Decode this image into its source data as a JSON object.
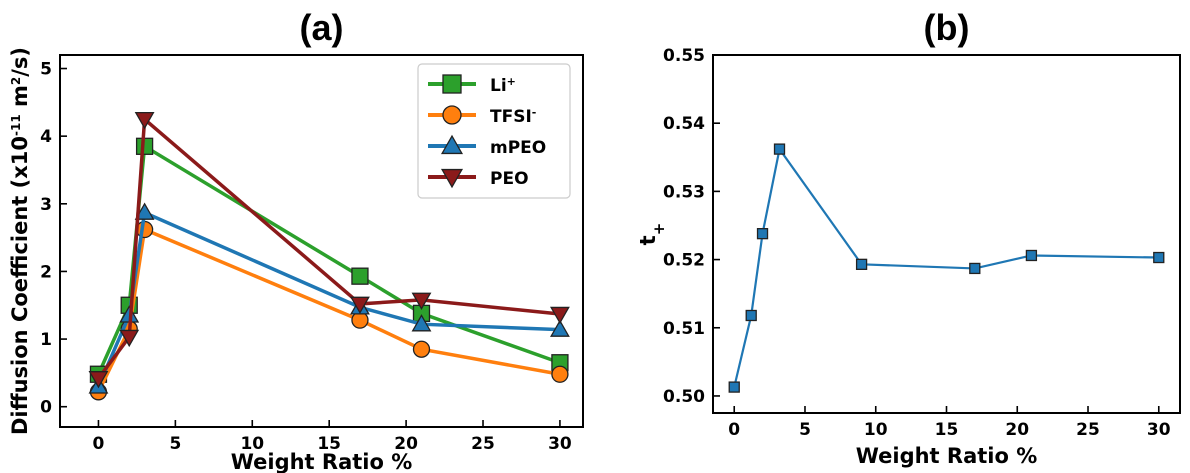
{
  "chart_data": [
    {
      "type": "line",
      "panel_label": "(a)",
      "xlabel": "Weight Ratio %",
      "ylabel": "Diffusion Coefficient (x10",
      "ylabel_exp": "-11",
      "ylabel_units": " m",
      "ylabel_units_exp": "2",
      "ylabel_tail": "/s)",
      "xlim": [
        -2.5,
        31.5
      ],
      "ylim": [
        -0.3,
        5.2
      ],
      "xticks": [
        0,
        5,
        10,
        15,
        20,
        25,
        30
      ],
      "yticks": [
        0,
        1,
        2,
        3,
        4,
        5
      ],
      "legend_position": "top-right",
      "series": [
        {
          "name": "Li",
          "name_sup": "+",
          "marker": "square",
          "color": "#2ca02c",
          "x": [
            0,
            2,
            3,
            17,
            21,
            30
          ],
          "y": [
            0.48,
            1.5,
            3.85,
            1.93,
            1.38,
            0.65
          ]
        },
        {
          "name": "TFSI",
          "name_sup": "-",
          "marker": "circle",
          "color": "#ff7f0e",
          "x": [
            0,
            2,
            3,
            17,
            21,
            30
          ],
          "y": [
            0.22,
            1.15,
            2.62,
            1.28,
            0.85,
            0.48
          ]
        },
        {
          "name": "mPEO",
          "name_sup": "",
          "marker": "triangle-up",
          "color": "#1f77b4",
          "x": [
            0,
            2,
            3,
            17,
            21,
            30
          ],
          "y": [
            0.3,
            1.35,
            2.87,
            1.47,
            1.22,
            1.14
          ]
        },
        {
          "name": "PEO",
          "name_sup": "",
          "marker": "triangle-down",
          "color": "#8b1a1a",
          "x": [
            0,
            2,
            3,
            17,
            21,
            30
          ],
          "y": [
            0.42,
            1.03,
            4.25,
            1.52,
            1.58,
            1.37
          ]
        }
      ]
    },
    {
      "type": "line",
      "panel_label": "(b)",
      "xlabel": "Weight Ratio %",
      "ylabel": "t",
      "ylabel_sub": "+",
      "xlim": [
        -1.5,
        31.5
      ],
      "ylim": [
        0.4975,
        0.55
      ],
      "xticks": [
        0,
        5,
        10,
        15,
        20,
        25,
        30
      ],
      "yticks": [
        0.5,
        0.51,
        0.52,
        0.53,
        0.54,
        0.55
      ],
      "ytick_labels": [
        "0.50",
        "0.51",
        "0.52",
        "0.53",
        "0.54",
        "0.55"
      ],
      "series": [
        {
          "marker": "square",
          "color": "#1f77b4",
          "x": [
            0,
            1.2,
            2,
            3.2,
            9,
            17,
            21,
            30
          ],
          "y": [
            0.5013,
            0.5118,
            0.5238,
            0.5362,
            0.5193,
            0.5187,
            0.5206,
            0.5203
          ]
        }
      ]
    }
  ]
}
